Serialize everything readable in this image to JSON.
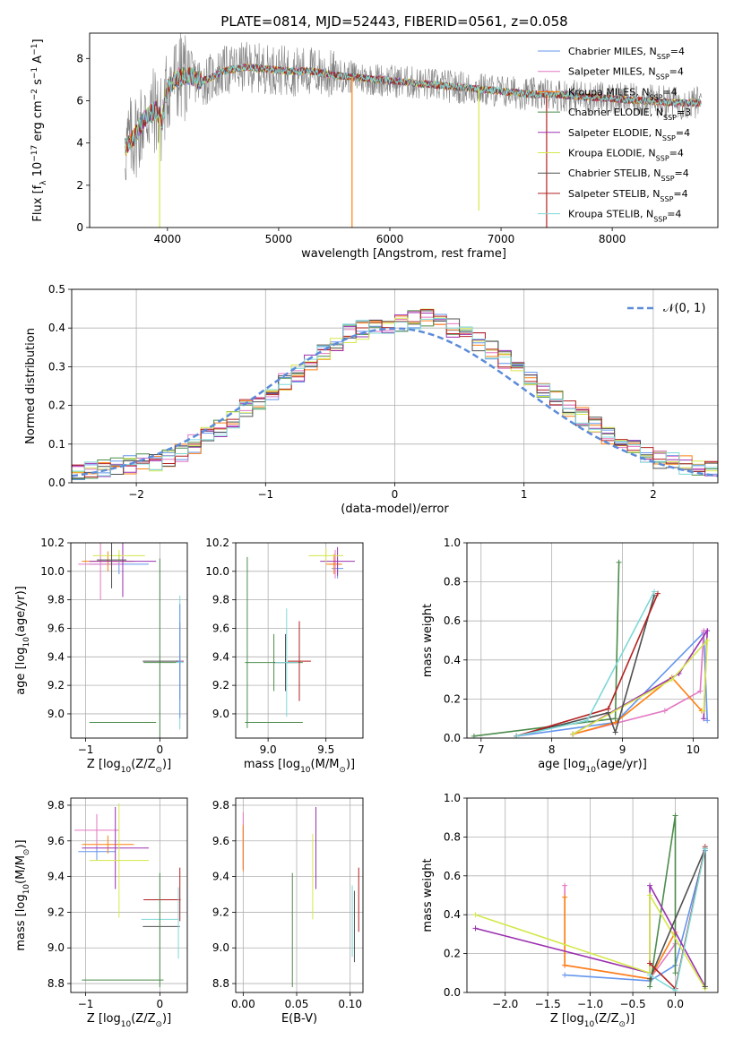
{
  "figure": {
    "title": "PLATE=0814, MJD=52443, FIBERID=0561, z=0.058"
  },
  "colors": {
    "chabrier_miles": "#6495ed",
    "salpeter_miles": "#e377c2",
    "kroupa_miles": "#ff7f0e",
    "chabrier_elodie": "#4c8c4c",
    "salpeter_elodie": "#9b30b0",
    "kroupa_elodie": "#d4e84a",
    "chabrier_stelib": "#505050",
    "salpeter_stelib": "#b22222",
    "kroupa_stelib": "#7fd8d8",
    "data": "#808080",
    "gaussian": "#5b8bd9",
    "grid": "#b0b0b0"
  },
  "chart_data": [
    {
      "id": "spectrum",
      "type": "line",
      "xlabel": "wavelength [Angstrom, rest frame]",
      "ylabel": "Flux [f_λ 10^-17 erg cm^-2 s^-1 A^-1]",
      "xlim": [
        3300,
        8950
      ],
      "ylim": [
        0,
        9.2
      ],
      "xticks": [
        4000,
        5000,
        6000,
        7000,
        8000
      ],
      "yticks": [
        0,
        2,
        4,
        6,
        8
      ],
      "grid": false,
      "legend_position": "right",
      "legend": [
        {
          "key": "chabrier_miles",
          "text": "Chabrier MILES, N",
          "sub": "SSP",
          "tail": "=4"
        },
        {
          "key": "salpeter_miles",
          "text": "Salpeter MILES, N",
          "sub": "SSP",
          "tail": "=4"
        },
        {
          "key": "kroupa_miles",
          "text": "Kroupa MILES, N",
          "sub": "SSP",
          "tail": "=4"
        },
        {
          "key": "chabrier_elodie",
          "text": "Chabrier ELODIE, N",
          "sub": "SSP",
          "tail": "=3"
        },
        {
          "key": "salpeter_elodie",
          "text": "Salpeter ELODIE, N",
          "sub": "SSP",
          "tail": "=4"
        },
        {
          "key": "kroupa_elodie",
          "text": "Kroupa ELODIE, N",
          "sub": "SSP",
          "tail": "=4"
        },
        {
          "key": "chabrier_stelib",
          "text": "Chabrier STELIB, N",
          "sub": "SSP",
          "tail": "=4"
        },
        {
          "key": "salpeter_stelib",
          "text": "Salpeter STELIB, N",
          "sub": "SSP",
          "tail": "=4"
        },
        {
          "key": "kroupa_stelib",
          "text": "Kroupa STELIB, N",
          "sub": "SSP",
          "tail": "=4"
        }
      ],
      "continuum": {
        "x": [
          3620,
          3700,
          3800,
          3900,
          3950,
          4000,
          4050,
          4100,
          4200,
          4300,
          4400,
          4500,
          4700,
          4900,
          5100,
          5300,
          5500,
          5700,
          5900,
          6100,
          6300,
          6500,
          6700,
          6900,
          7100,
          7300,
          7500,
          7700,
          8000,
          8300,
          8600,
          8800
        ],
        "y": [
          3.8,
          4.3,
          5.2,
          5.6,
          5.0,
          6.6,
          6.9,
          7.1,
          7.2,
          6.9,
          7.1,
          7.4,
          7.6,
          7.5,
          7.4,
          7.4,
          7.2,
          7.1,
          7.0,
          6.9,
          6.8,
          6.7,
          6.6,
          6.5,
          6.4,
          6.3,
          6.3,
          6.2,
          6.1,
          6.0,
          5.9,
          5.9
        ]
      },
      "spikes": [
        {
          "key": "kroupa_elodie",
          "x": 3930,
          "y": 0.0
        },
        {
          "key": "kroupa_miles",
          "x": 5660,
          "y": 0.0
        },
        {
          "key": "kroupa_elodie",
          "x": 6800,
          "y": 0.8
        },
        {
          "key": "salpeter_stelib",
          "x": 7410,
          "y": 0.0
        }
      ]
    },
    {
      "id": "residuals",
      "type": "histogram",
      "xlabel": "(data-model)/error",
      "ylabel": "Normed distribution",
      "xlim": [
        -2.5,
        2.5
      ],
      "ylim": [
        0,
        0.5
      ],
      "xticks": [
        -2,
        -1,
        0,
        1,
        2
      ],
      "yticks": [
        0.0,
        0.1,
        0.2,
        0.3,
        0.4,
        0.5
      ],
      "grid": true,
      "legend_position": "top-right",
      "legend": [
        {
          "key": "gaussian",
          "text": "𝒩(0, 1)"
        }
      ],
      "bin_edges": [
        -2.5,
        -2.4,
        -2.3,
        -2.2,
        -2.1,
        -2.0,
        -1.9,
        -1.8,
        -1.7,
        -1.6,
        -1.5,
        -1.4,
        -1.3,
        -1.2,
        -1.1,
        -1.0,
        -0.9,
        -0.8,
        -0.7,
        -0.6,
        -0.5,
        -0.4,
        -0.3,
        -0.2,
        -0.1,
        0.0,
        0.1,
        0.2,
        0.3,
        0.4,
        0.5,
        0.6,
        0.7,
        0.8,
        0.9,
        1.0,
        1.1,
        1.2,
        1.3,
        1.4,
        1.5,
        1.6,
        1.7,
        1.8,
        1.9,
        2.0,
        2.1,
        2.2,
        2.3,
        2.4,
        2.5
      ],
      "base": [
        0.025,
        0.03,
        0.035,
        0.04,
        0.045,
        0.05,
        0.055,
        0.065,
        0.08,
        0.1,
        0.12,
        0.14,
        0.165,
        0.19,
        0.21,
        0.235,
        0.26,
        0.285,
        0.315,
        0.34,
        0.365,
        0.385,
        0.395,
        0.4,
        0.405,
        0.41,
        0.42,
        0.425,
        0.415,
        0.4,
        0.385,
        0.365,
        0.345,
        0.32,
        0.295,
        0.27,
        0.245,
        0.22,
        0.195,
        0.17,
        0.15,
        0.125,
        0.1,
        0.085,
        0.075,
        0.06,
        0.055,
        0.045,
        0.035,
        0.03
      ]
    },
    {
      "id": "age_vs_Z",
      "type": "errorbar",
      "xlabel": "Z [log10(Z/Z⊙)]",
      "ylabel": "age  [log10(age/yr)]",
      "xlim": [
        -1.2,
        0.37
      ],
      "ylim": [
        8.83,
        10.2
      ],
      "xticks": [
        -1,
        0
      ],
      "yticks": [
        9.0,
        9.2,
        9.4,
        9.6,
        9.8,
        10.0,
        10.2
      ],
      "grid": true,
      "points": [
        {
          "key": "chabrier_miles",
          "x": -0.55,
          "xerr": 0.4,
          "y": 10.05,
          "yerr": 0.07
        },
        {
          "key": "salpeter_miles",
          "x": -0.8,
          "xerr": 0.3,
          "y": 10.05,
          "yerr": 0.25
        },
        {
          "key": "kroupa_miles",
          "x": -0.7,
          "xerr": 0.35,
          "y": 10.07,
          "yerr": 0.07
        },
        {
          "key": "chabrier_elodie",
          "x": 0.0,
          "xerr": 0.22,
          "y": 9.36,
          "yerr": 0.73
        },
        {
          "key": "salpeter_elodie",
          "x": -0.5,
          "xerr": 0.45,
          "y": 10.07,
          "yerr": 0.25
        },
        {
          "key": "kroupa_elodie",
          "x": -0.55,
          "xerr": 0.35,
          "y": 10.11,
          "yerr": 0.04
        },
        {
          "key": "chabrier_stelib",
          "x": -0.65,
          "xerr": 0.2,
          "y": 10.08,
          "yerr": 0.2
        },
        {
          "key": "salpeter_stelib",
          "x": 0.27,
          "xerr": 0.05,
          "y": 9.37,
          "yerr": 0.27
        },
        {
          "key": "kroupa_stelib",
          "x": 0.27,
          "xerr": 0.05,
          "y": 9.36,
          "yerr": 0.47
        },
        {
          "key": "chabrier_elodie",
          "x": -0.5,
          "xerr": 0.45,
          "y": 8.94,
          "yerr": 0.0
        },
        {
          "key": "chabrier_stelib",
          "x": 0.02,
          "xerr": 0.25,
          "y": 9.37,
          "yerr": 0.0
        },
        {
          "key": "chabrier_miles",
          "x": 0.27,
          "xerr": 0.03,
          "y": 9.37,
          "yerr": 0.4
        }
      ]
    },
    {
      "id": "age_vs_mass",
      "type": "errorbar",
      "xlabel": "mass [log10(M/M⊙)]",
      "ylabel": "",
      "xlim": [
        8.72,
        9.82
      ],
      "ylim": [
        8.83,
        10.2
      ],
      "xticks": [
        9.0,
        9.5
      ],
      "yticks": [
        9.0,
        9.2,
        9.4,
        9.6,
        9.8,
        10.0,
        10.2
      ],
      "grid": true,
      "points": [
        {
          "key": "chabrier_miles",
          "x": 9.6,
          "xerr": 0.05,
          "y": 10.02,
          "yerr": 0.07
        },
        {
          "key": "salpeter_miles",
          "x": 9.58,
          "xerr": 0.05,
          "y": 10.05,
          "yerr": 0.1
        },
        {
          "key": "kroupa_miles",
          "x": 9.57,
          "xerr": 0.07,
          "y": 10.05,
          "yerr": 0.07
        },
        {
          "key": "chabrier_elodie",
          "x": 9.05,
          "xerr": 0.25,
          "y": 9.36,
          "yerr": 0.2
        },
        {
          "key": "salpeter_elodie",
          "x": 9.6,
          "xerr": 0.15,
          "y": 10.07,
          "yerr": 0.1
        },
        {
          "key": "kroupa_elodie",
          "x": 9.5,
          "xerr": 0.15,
          "y": 10.11,
          "yerr": 0.05
        },
        {
          "key": "chabrier_stelib",
          "x": 9.15,
          "xerr": 0.1,
          "y": 9.36,
          "yerr": 0.2
        },
        {
          "key": "salpeter_stelib",
          "x": 9.27,
          "xerr": 0.1,
          "y": 9.37,
          "yerr": 0.28
        },
        {
          "key": "kroupa_stelib",
          "x": 9.16,
          "xerr": 0.1,
          "y": 9.36,
          "yerr": 0.38
        },
        {
          "key": "chabrier_elodie",
          "x": 8.82,
          "xerr": 0.0,
          "y": 9.5,
          "yerr": 0.6
        },
        {
          "key": "chabrier_elodie",
          "x": 9.05,
          "xerr": 0.25,
          "y": 8.94,
          "yerr": 0.0
        }
      ]
    },
    {
      "id": "weight_vs_age",
      "type": "line",
      "xlabel": "age  [log10(age/yr)]",
      "ylabel": "mass weight",
      "xlim": [
        6.8,
        10.35
      ],
      "ylim": [
        0,
        1
      ],
      "xticks": [
        7,
        8,
        9,
        10
      ],
      "yticks": [
        0.0,
        0.2,
        0.4,
        0.6,
        0.8,
        1.0
      ],
      "grid": true,
      "series": [
        {
          "key": "chabrier_miles",
          "x": [
            7.5,
            8.9,
            10.15,
            10.2
          ],
          "y": [
            0.01,
            0.08,
            0.54,
            0.09
          ]
        },
        {
          "key": "salpeter_miles",
          "x": [
            8.3,
            9.6,
            10.1,
            10.15
          ],
          "y": [
            0.02,
            0.14,
            0.24,
            0.55
          ]
        },
        {
          "key": "kroupa_miles",
          "x": [
            8.3,
            8.9,
            9.7,
            10.12
          ],
          "y": [
            0.02,
            0.08,
            0.31,
            0.14
          ]
        },
        {
          "key": "chabrier_elodie",
          "x": [
            6.9,
            8.9,
            8.95
          ],
          "y": [
            0.01,
            0.1,
            0.9
          ]
        },
        {
          "key": "salpeter_elodie",
          "x": [
            8.3,
            9.8,
            10.2,
            10.15
          ],
          "y": [
            0.02,
            0.33,
            0.55,
            0.1
          ]
        },
        {
          "key": "kroupa_elodie",
          "x": [
            8.3,
            9.7,
            10.2,
            10.15
          ],
          "y": [
            0.02,
            0.3,
            0.5,
            0.14
          ]
        },
        {
          "key": "chabrier_stelib",
          "x": [
            7.5,
            8.8,
            8.9,
            9.45
          ],
          "y": [
            0.01,
            0.13,
            0.03,
            0.73
          ]
        },
        {
          "key": "salpeter_stelib",
          "x": [
            7.5,
            8.8,
            9.5
          ],
          "y": [
            0.01,
            0.15,
            0.74
          ]
        },
        {
          "key": "kroupa_stelib",
          "x": [
            7.5,
            8.5,
            9.45
          ],
          "y": [
            0.01,
            0.09,
            0.75
          ]
        }
      ]
    },
    {
      "id": "mass_vs_Z",
      "type": "errorbar",
      "xlabel": "Z [log10(Z/Z⊙)]",
      "ylabel": "mass [log10(M/M⊙)]",
      "xlim": [
        -1.2,
        0.37
      ],
      "ylim": [
        8.75,
        9.84
      ],
      "xticks": [
        -1,
        0
      ],
      "yticks": [
        8.8,
        9.0,
        9.2,
        9.4,
        9.6,
        9.8
      ],
      "grid": true,
      "points": [
        {
          "key": "chabrier_miles",
          "x": -0.85,
          "xerr": 0.25,
          "y": 9.54,
          "yerr": 0.05
        },
        {
          "key": "salpeter_miles",
          "x": -0.85,
          "xerr": 0.3,
          "y": 9.66,
          "yerr": 0.09
        },
        {
          "key": "kroupa_miles",
          "x": -0.7,
          "xerr": 0.35,
          "y": 9.58,
          "yerr": 0.05
        },
        {
          "key": "chabrier_elodie",
          "x": -0.5,
          "xerr": 0.55,
          "y": 8.82,
          "yerr": 0.0
        },
        {
          "key": "salpeter_elodie",
          "x": -0.6,
          "xerr": 0.45,
          "y": 9.56,
          "yerr": 0.23
        },
        {
          "key": "kroupa_elodie",
          "x": -0.55,
          "xerr": 0.4,
          "y": 9.49,
          "yerr": 0.32
        },
        {
          "key": "chabrier_stelib",
          "x": 0.02,
          "xerr": 0.25,
          "y": 9.12,
          "yerr": 0.0
        },
        {
          "key": "salpeter_stelib",
          "x": 0.03,
          "xerr": 0.25,
          "y": 9.27,
          "yerr": 0.0
        },
        {
          "key": "kroupa_stelib",
          "x": 0.0,
          "xerr": 0.25,
          "y": 9.16,
          "yerr": 0.0
        },
        {
          "key": "chabrier_elodie",
          "x": 0.0,
          "xerr": 0.0,
          "y": 9.1,
          "yerr": 0.32
        },
        {
          "key": "kroupa_stelib",
          "x": 0.25,
          "xerr": 0.0,
          "y": 9.14,
          "yerr": 0.2
        },
        {
          "key": "salpeter_stelib",
          "x": 0.27,
          "xerr": 0.0,
          "y": 9.3,
          "yerr": 0.15
        }
      ]
    },
    {
      "id": "mass_vs_ebv",
      "type": "errorbar",
      "xlabel": "E(B-V)",
      "ylabel": "",
      "xlim": [
        -0.007,
        0.112
      ],
      "ylim": [
        8.75,
        9.84
      ],
      "xticks": [
        0.0,
        0.05,
        0.1
      ],
      "xticklabels": [
        "0.00",
        "0.05",
        "0.10"
      ],
      "yticks": [
        8.8,
        9.0,
        9.2,
        9.4,
        9.6,
        9.8
      ],
      "grid": true,
      "points": [
        {
          "key": "chabrier_miles",
          "x": 0.0,
          "xerr": 0,
          "y": 9.56,
          "yerr": 0.12
        },
        {
          "key": "salpeter_miles",
          "x": 0.0,
          "xerr": 0,
          "y": 9.6,
          "yerr": 0.16
        },
        {
          "key": "kroupa_miles",
          "x": 0.0,
          "xerr": 0,
          "y": 9.56,
          "yerr": 0.13
        },
        {
          "key": "chabrier_elodie",
          "x": 0.046,
          "xerr": 0,
          "y": 9.1,
          "yerr": 0.32
        },
        {
          "key": "salpeter_elodie",
          "x": 0.068,
          "xerr": 0,
          "y": 9.56,
          "yerr": 0.23
        },
        {
          "key": "kroupa_elodie",
          "x": 0.065,
          "xerr": 0,
          "y": 9.4,
          "yerr": 0.24
        },
        {
          "key": "chabrier_stelib",
          "x": 0.104,
          "xerr": 0,
          "y": 9.12,
          "yerr": 0.2
        },
        {
          "key": "salpeter_stelib",
          "x": 0.108,
          "xerr": 0,
          "y": 9.27,
          "yerr": 0.18
        },
        {
          "key": "kroupa_stelib",
          "x": 0.102,
          "xerr": 0,
          "y": 9.15,
          "yerr": 0.2
        }
      ]
    },
    {
      "id": "weight_vs_Z",
      "type": "line",
      "xlabel": "Z [log10(Z/Z⊙)]",
      "ylabel": "mass weight",
      "xlim": [
        -2.45,
        0.5
      ],
      "ylim": [
        0,
        1
      ],
      "xticks": [
        -2.0,
        -1.5,
        -1.0,
        -0.5,
        0.0
      ],
      "yticks": [
        0.0,
        0.2,
        0.4,
        0.6,
        0.8,
        1.0
      ],
      "grid": true,
      "series": [
        {
          "key": "chabrier_miles",
          "x": [
            -1.3,
            -0.3,
            0.0,
            0.35
          ],
          "y": [
            0.09,
            0.06,
            0.14,
            0.73
          ]
        },
        {
          "key": "salpeter_miles",
          "x": [
            -1.3,
            -1.3,
            -0.3,
            0.0
          ],
          "y": [
            0.55,
            0.14,
            0.07,
            0.25
          ]
        },
        {
          "key": "kroupa_miles",
          "x": [
            -1.3,
            -1.3,
            -0.3,
            0.0
          ],
          "y": [
            0.49,
            0.14,
            0.07,
            0.31
          ]
        },
        {
          "key": "chabrier_elodie",
          "x": [
            -0.3,
            0.0,
            0.0
          ],
          "y": [
            0.03,
            0.91,
            0.1
          ]
        },
        {
          "key": "salpeter_elodie",
          "x": [
            -2.35,
            -0.3,
            -0.3,
            0.35
          ],
          "y": [
            0.33,
            0.1,
            0.55,
            0.03
          ]
        },
        {
          "key": "kroupa_elodie",
          "x": [
            -2.35,
            -0.3,
            -0.3,
            0.35
          ],
          "y": [
            0.4,
            0.1,
            0.5,
            0.02
          ]
        },
        {
          "key": "chabrier_stelib",
          "x": [
            -0.3,
            0.35,
            0.35
          ],
          "y": [
            0.07,
            0.74,
            0.03
          ]
        },
        {
          "key": "salpeter_stelib",
          "x": [
            -0.3,
            0.0,
            0.35
          ],
          "y": [
            0.15,
            0.02,
            0.75
          ]
        },
        {
          "key": "kroupa_stelib",
          "x": [
            -0.3,
            0.0,
            0.35
          ],
          "y": [
            0.09,
            0.01,
            0.74
          ]
        }
      ]
    }
  ]
}
